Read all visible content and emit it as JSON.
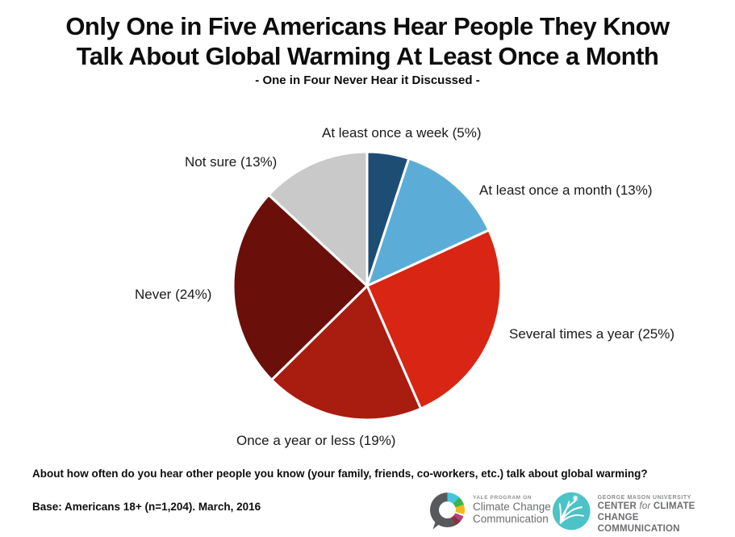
{
  "header": {
    "title_line1": "Only One in Five Americans Hear People They Know",
    "title_line2": "Talk About Global Warming At Least Once a Month",
    "subtitle": "- One in Four Never Hear it Discussed -"
  },
  "chart_data": {
    "type": "pie",
    "title": "Only One in Five Americans Hear People They Know Talk About Global Warming At Least Once a Month",
    "subtitle": "- One in Four Never Hear it Discussed -",
    "start_angle_deg": 0,
    "direction": "clockwise",
    "slice_gap_color": "#ffffff",
    "slices": [
      {
        "id": "at-least-once-a-week",
        "label": "At least once a week",
        "value": 5,
        "label_display": "At least once a week (5%)",
        "color": "#1e4d74"
      },
      {
        "id": "at-least-once-a-month",
        "label": "At least once a month",
        "value": 13,
        "label_display": "At least once a month (13%)",
        "color": "#5badd8"
      },
      {
        "id": "several-times-a-year",
        "label": "Several times a year",
        "value": 25,
        "label_display": "Several times a year (25%)",
        "color": "#d92513"
      },
      {
        "id": "once-a-year-or-less",
        "label": "Once a year or less",
        "value": 19,
        "label_display": "Once a year or less (19%)",
        "color": "#a91c10"
      },
      {
        "id": "never",
        "label": "Never",
        "value": 24,
        "label_display": "Never (24%)",
        "color": "#6b0f0b"
      },
      {
        "id": "not-sure",
        "label": "Not sure",
        "value": 13,
        "label_display": "Not sure (13%)",
        "color": "#c9c9c9"
      }
    ]
  },
  "footer": {
    "question": "About how often do you hear other people you know (your family, friends, co-workers, etc.) talk about global warming?",
    "base": "Base: Americans 18+ (n=1,204). March, 2016"
  },
  "logos": {
    "yale": {
      "eyebrow": "YALE PROGRAM ON",
      "line1": "Climate Change",
      "line2": "Communication"
    },
    "gmu": {
      "eyebrow": "GEORGE MASON UNIVERSITY",
      "line1_a": "CENTER ",
      "line1_b": "for",
      "line1_c": " CLIMATE CHANGE",
      "line2": "COMMUNICATION"
    }
  }
}
